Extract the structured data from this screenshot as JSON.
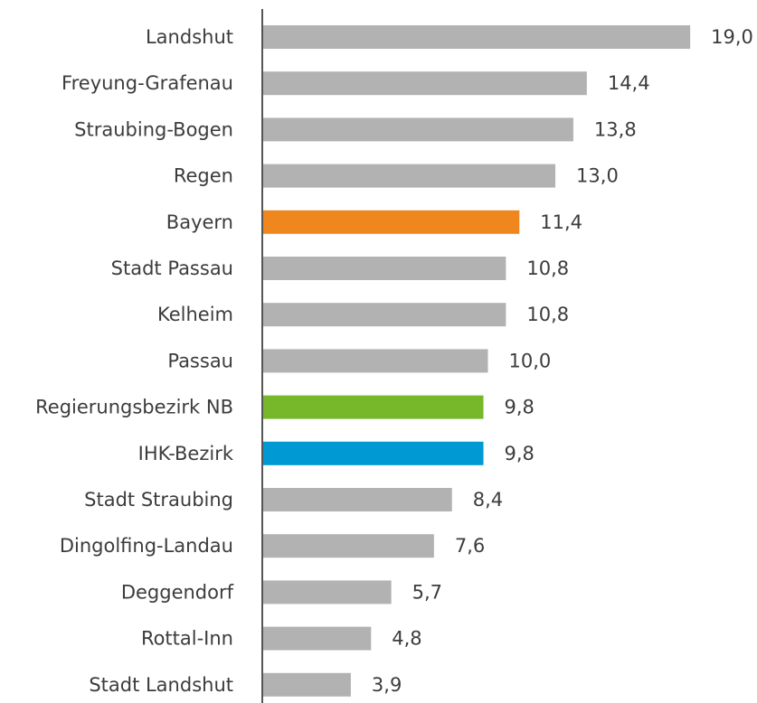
{
  "chart_data": {
    "type": "bar",
    "orientation": "horizontal",
    "categories": [
      "Landshut",
      "Freyung-Grafenau",
      "Straubing-Bogen",
      "Regen",
      "Bayern",
      "Stadt Passau",
      "Kelheim",
      "Passau",
      "Regierungsbezirk NB",
      "IHK-Bezirk",
      "Stadt Straubing",
      "Dingolfing-Landau",
      "Deggendorf",
      "Rottal-Inn",
      "Stadt Landshut"
    ],
    "values": [
      19.0,
      14.4,
      13.8,
      13.0,
      11.4,
      10.8,
      10.8,
      10.0,
      9.8,
      9.8,
      8.4,
      7.6,
      5.7,
      4.8,
      3.9
    ],
    "value_labels": [
      "19,0",
      "14,4",
      "13,8",
      "13,0",
      "11,4",
      "10,8",
      "10,8",
      "10,0",
      "9,8",
      "9,8",
      "8,4",
      "7,6",
      "5,7",
      "4,8",
      "3,9"
    ],
    "colors": [
      "#b2b2b2",
      "#b2b2b2",
      "#b2b2b2",
      "#b2b2b2",
      "#f0861e",
      "#b2b2b2",
      "#b2b2b2",
      "#b2b2b2",
      "#76b82a",
      "#0099d4",
      "#b2b2b2",
      "#b2b2b2",
      "#b2b2b2",
      "#b2b2b2",
      "#b2b2b2"
    ],
    "xlim": [
      0,
      20
    ]
  }
}
